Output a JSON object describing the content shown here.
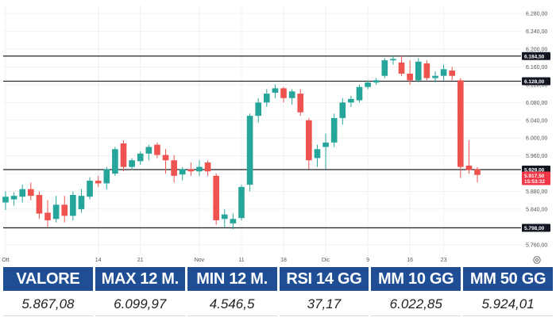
{
  "chart_data": {
    "type": "candlestick",
    "price_axis": {
      "min": 5740,
      "max": 6300,
      "ticks": [
        "6.280,00",
        "6.240,00",
        "6.200,00",
        "6.160,00",
        "6.120,00",
        "6.080,00",
        "6.040,00",
        "6.000,00",
        "5.960,00",
        "5.920,00",
        "5.880,00",
        "5.840,00",
        "5.800,00",
        "5.760,00"
      ],
      "tick_values": [
        6280,
        6240,
        6200,
        6160,
        6120,
        6080,
        6040,
        6000,
        5960,
        5920,
        5880,
        5840,
        5800,
        5760
      ]
    },
    "x_axis_labels": [
      {
        "text": "Ott",
        "index": 0
      },
      {
        "text": "14",
        "index": 11
      },
      {
        "text": "21",
        "index": 16
      },
      {
        "text": "Nov",
        "index": 23
      },
      {
        "text": "11",
        "index": 28
      },
      {
        "text": "18",
        "index": 33
      },
      {
        "text": "Dic",
        "index": 38
      },
      {
        "text": "9",
        "index": 43
      },
      {
        "text": "16",
        "index": 48
      },
      {
        "text": "23",
        "index": 52
      }
    ],
    "horizontal_lines": [
      {
        "value": 6184.5,
        "label": "6.184,50",
        "style": "dark"
      },
      {
        "value": 6128.0,
        "label": "6.128,00",
        "style": "dark"
      },
      {
        "value": 5929.0,
        "label": "5.929,00",
        "style": "dark"
      },
      {
        "value": 5798.0,
        "label": "5.798,00",
        "style": "dark"
      }
    ],
    "current_price_label": {
      "value": 5917.5,
      "label": "5.917,50",
      "sublabel": "15:53:32",
      "color": "#f23645"
    },
    "up_color": "#26a69a",
    "down_color": "#ef5350",
    "candles": [
      {
        "o": 5855,
        "h": 5880,
        "l": 5838,
        "c": 5868
      },
      {
        "o": 5862,
        "h": 5878,
        "l": 5848,
        "c": 5870
      },
      {
        "o": 5868,
        "h": 5895,
        "l": 5855,
        "c": 5885
      },
      {
        "o": 5885,
        "h": 5900,
        "l": 5860,
        "c": 5870
      },
      {
        "o": 5872,
        "h": 5880,
        "l": 5818,
        "c": 5830
      },
      {
        "o": 5832,
        "h": 5860,
        "l": 5800,
        "c": 5815
      },
      {
        "o": 5818,
        "h": 5870,
        "l": 5810,
        "c": 5850
      },
      {
        "o": 5850,
        "h": 5870,
        "l": 5810,
        "c": 5825
      },
      {
        "o": 5825,
        "h": 5880,
        "l": 5815,
        "c": 5872
      },
      {
        "o": 5840,
        "h": 5885,
        "l": 5832,
        "c": 5870
      },
      {
        "o": 5868,
        "h": 5912,
        "l": 5862,
        "c": 5904
      },
      {
        "o": 5904,
        "h": 5915,
        "l": 5890,
        "c": 5898
      },
      {
        "o": 5898,
        "h": 5935,
        "l": 5885,
        "c": 5930
      },
      {
        "o": 5920,
        "h": 5980,
        "l": 5915,
        "c": 5975
      },
      {
        "o": 5988,
        "h": 5995,
        "l": 5925,
        "c": 5935
      },
      {
        "o": 5935,
        "h": 5955,
        "l": 5928,
        "c": 5950
      },
      {
        "o": 5948,
        "h": 5970,
        "l": 5940,
        "c": 5965
      },
      {
        "o": 5965,
        "h": 5985,
        "l": 5950,
        "c": 5980
      },
      {
        "o": 5985,
        "h": 5990,
        "l": 5955,
        "c": 5962
      },
      {
        "o": 5962,
        "h": 5975,
        "l": 5920,
        "c": 5950
      },
      {
        "o": 5950,
        "h": 5962,
        "l": 5900,
        "c": 5915
      },
      {
        "o": 5918,
        "h": 5935,
        "l": 5905,
        "c": 5930
      },
      {
        "o": 5930,
        "h": 5945,
        "l": 5915,
        "c": 5925
      },
      {
        "o": 5925,
        "h": 5950,
        "l": 5915,
        "c": 5935
      },
      {
        "o": 5945,
        "h": 5950,
        "l": 5915,
        "c": 5925
      },
      {
        "o": 5915,
        "h": 5920,
        "l": 5805,
        "c": 5815
      },
      {
        "o": 5818,
        "h": 5840,
        "l": 5800,
        "c": 5828
      },
      {
        "o": 5808,
        "h": 5830,
        "l": 5795,
        "c": 5818
      },
      {
        "o": 5820,
        "h": 5895,
        "l": 5815,
        "c": 5890
      },
      {
        "o": 5895,
        "h": 6055,
        "l": 5880,
        "c": 6050
      },
      {
        "o": 6050,
        "h": 6090,
        "l": 6035,
        "c": 6080
      },
      {
        "o": 6080,
        "h": 6110,
        "l": 6070,
        "c": 6100
      },
      {
        "o": 6102,
        "h": 6120,
        "l": 6090,
        "c": 6112
      },
      {
        "o": 6112,
        "h": 6115,
        "l": 6080,
        "c": 6090
      },
      {
        "o": 6090,
        "h": 6110,
        "l": 6075,
        "c": 6105
      },
      {
        "o": 6100,
        "h": 6110,
        "l": 6050,
        "c": 6058
      },
      {
        "o": 6040,
        "h": 6045,
        "l": 5930,
        "c": 5950
      },
      {
        "o": 5955,
        "h": 5985,
        "l": 5935,
        "c": 5975
      },
      {
        "o": 5980,
        "h": 6010,
        "l": 5930,
        "c": 5990
      },
      {
        "o": 5990,
        "h": 6055,
        "l": 5980,
        "c": 6045
      },
      {
        "o": 6045,
        "h": 6090,
        "l": 6030,
        "c": 6080
      },
      {
        "o": 6080,
        "h": 6095,
        "l": 6070,
        "c": 6088
      },
      {
        "o": 6085,
        "h": 6120,
        "l": 6080,
        "c": 6115
      },
      {
        "o": 6115,
        "h": 6130,
        "l": 6110,
        "c": 6125
      },
      {
        "o": 6125,
        "h": 6135,
        "l": 6120,
        "c": 6130
      },
      {
        "o": 6140,
        "h": 6180,
        "l": 6135,
        "c": 6175
      },
      {
        "o": 6175,
        "h": 6185,
        "l": 6165,
        "c": 6178
      },
      {
        "o": 6170,
        "h": 6185,
        "l": 6140,
        "c": 6145
      },
      {
        "o": 6145,
        "h": 6175,
        "l": 6120,
        "c": 6130
      },
      {
        "o": 6130,
        "h": 6180,
        "l": 6125,
        "c": 6172
      },
      {
        "o": 6168,
        "h": 6175,
        "l": 6130,
        "c": 6135
      },
      {
        "o": 6135,
        "h": 6150,
        "l": 6125,
        "c": 6140
      },
      {
        "o": 6140,
        "h": 6165,
        "l": 6130,
        "c": 6155
      },
      {
        "o": 6152,
        "h": 6160,
        "l": 6130,
        "c": 6140
      },
      {
        "o": 6130,
        "h": 6135,
        "l": 5910,
        "c": 5935
      },
      {
        "o": 5938,
        "h": 5995,
        "l": 5920,
        "c": 5928
      },
      {
        "o": 5930,
        "h": 5935,
        "l": 5900,
        "c": 5917
      }
    ]
  },
  "icons": {
    "settings": "gear-icon"
  },
  "stats": {
    "headers": [
      "VALORE",
      "MAX 12 M.",
      "MIN 12 M.",
      "RSI 14 GG",
      "MM 10 GG",
      "MM 50 GG"
    ],
    "values": [
      "5.867,08",
      "6.099,97",
      "4.546,5",
      "37,17",
      "6.022,85",
      "5.924,01"
    ]
  }
}
